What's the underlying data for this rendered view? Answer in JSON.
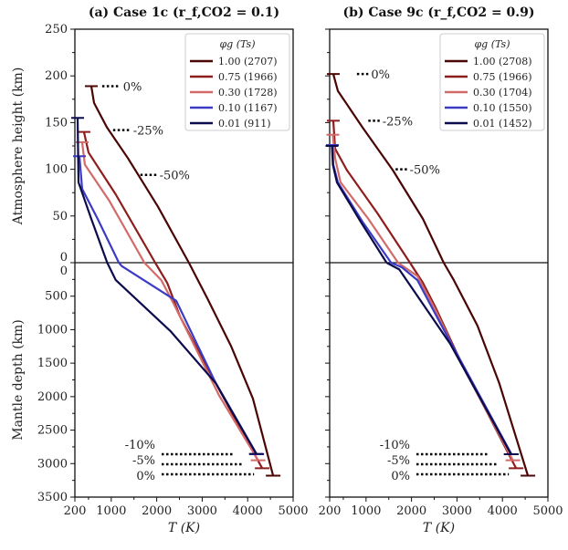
{
  "chart_data": [
    {
      "type": "line",
      "title": "(a) Case 1c (r_f,CO2 = 0.1)",
      "title_main": "(a) Case 1c (r",
      "title_sub": "f,CO",
      "title_sub2": "2",
      "title_tail": " = 0.1)",
      "xlabel": "T (K)",
      "ylabel_top": "Atmosphere height (km)",
      "ylabel_bottom": "Mantle depth (km)",
      "xlim": [
        200,
        5000
      ],
      "xticks": [
        "200",
        "1000",
        "2000",
        "3000",
        "4000",
        "5000"
      ],
      "ylim_top": [
        0,
        250
      ],
      "yticks_top": [
        "0",
        "50",
        "100",
        "150",
        "200",
        "250"
      ],
      "ylim_bottom": [
        3500,
        0
      ],
      "yticks_bottom": [
        "0",
        "500",
        "1000",
        "1500",
        "2000",
        "2500",
        "3000",
        "3500"
      ],
      "legend_title": "φg (Ts)",
      "legend": "top-right",
      "series": [
        {
          "name": "1.00 (2707)",
          "color": "#4a0505",
          "atm": [
            [
              561,
              189
            ],
            [
              622,
              171
            ],
            [
              903,
              145
            ],
            [
              1365,
              112
            ],
            [
              2027,
              60
            ],
            [
              2707,
              0
            ]
          ],
          "mantle": [
            [
              2707,
              0
            ],
            [
              3112,
              531
            ],
            [
              3640,
              1253
            ],
            [
              4116,
              2030
            ],
            [
              4560,
              3180
            ]
          ]
        },
        {
          "name": "0.75 (1966)",
          "color": "#8e1d1d",
          "atm": [
            [
              400,
              140
            ],
            [
              500,
              118
            ],
            [
              1100,
              73
            ],
            [
              1966,
              0
            ]
          ],
          "mantle": [
            [
              1966,
              0
            ],
            [
              2230,
              300
            ],
            [
              2510,
              800
            ],
            [
              3370,
              1890
            ],
            [
              4320,
              3070
            ]
          ]
        },
        {
          "name": "0.30 (1728)",
          "color": "#d36a6a",
          "atm": [
            [
              360,
              129
            ],
            [
              420,
              105
            ],
            [
              960,
              66
            ],
            [
              1728,
              0
            ]
          ],
          "mantle": [
            [
              1728,
              0
            ],
            [
              2100,
              260
            ],
            [
              2370,
              610
            ],
            [
              3370,
              1980
            ],
            [
              4230,
              2950
            ]
          ]
        },
        {
          "name": "0.10 (1167)",
          "color": "#3b3bc4",
          "atm": [
            [
              300,
              114
            ],
            [
              360,
              79
            ],
            [
              700,
              47
            ],
            [
              1167,
              0
            ]
          ],
          "mantle": [
            [
              1167,
              0
            ],
            [
              1230,
              50
            ],
            [
              2430,
              570
            ],
            [
              3300,
              1800
            ],
            [
              4200,
              2860
            ]
          ]
        },
        {
          "name": "0.01 (911)",
          "color": "#0b0b4d",
          "atm": [
            [
              260,
              155
            ],
            [
              280,
              86
            ],
            [
              560,
              47
            ],
            [
              911,
              0
            ]
          ],
          "mantle": [
            [
              911,
              0
            ],
            [
              1100,
              260
            ],
            [
              2300,
              1020
            ],
            [
              3300,
              1800
            ],
            [
              4190,
              2855
            ]
          ]
        }
      ],
      "atm_annotations": [
        {
          "label": "0%",
          "h": 189,
          "t0": 800,
          "t1": 1200
        },
        {
          "label": "-25%",
          "h": 142,
          "t0": 1040,
          "t1": 1420
        },
        {
          "label": "-50%",
          "h": 94,
          "t0": 1640,
          "t1": 2000
        }
      ],
      "mantle_annotations": [
        {
          "label": "-10%",
          "d": 2860,
          "t1": 3680
        },
        {
          "label": "-5%",
          "d": 3010,
          "t1": 3880
        },
        {
          "label": "0%",
          "d": 3160,
          "t1": 4140
        }
      ]
    },
    {
      "type": "line",
      "title": "(b) Case 9c (r_f,CO2 = 0.9)",
      "title_main": "(b) Case 9c (r",
      "title_sub": "f,CO",
      "title_sub2": "2",
      "title_tail": " = 0.9)",
      "xlabel": "T (K)",
      "xlim": [
        200,
        5000
      ],
      "xticks": [
        "200",
        "1000",
        "2000",
        "3000",
        "4000",
        "5000"
      ],
      "ylim_top": [
        0,
        250
      ],
      "ylim_bottom": [
        3500,
        0
      ],
      "legend_title": "φg (Ts)",
      "legend": "top-right",
      "series": [
        {
          "name": "1.00 (2708)",
          "color": "#4a0505",
          "atm": [
            [
              280,
              202
            ],
            [
              380,
              184
            ],
            [
              920,
              145
            ],
            [
              1590,
              99
            ],
            [
              2250,
              47
            ],
            [
              2708,
              0
            ]
          ],
          "mantle": [
            [
              2708,
              0
            ],
            [
              2930,
              260
            ],
            [
              3450,
              940
            ],
            [
              3930,
              1800
            ],
            [
              4560,
              3180
            ]
          ]
        },
        {
          "name": "0.75 (1966)",
          "color": "#8e1d1d",
          "atm": [
            [
              280,
              152
            ],
            [
              320,
              122
            ],
            [
              580,
              99
            ],
            [
              1250,
              53
            ],
            [
              1966,
              0
            ]
          ],
          "mantle": [
            [
              1966,
              0
            ],
            [
              2250,
              300
            ],
            [
              2530,
              670
            ],
            [
              3050,
              1430
            ],
            [
              4300,
              3070
            ]
          ]
        },
        {
          "name": "0.30 (1704)",
          "color": "#d36a6a",
          "atm": [
            [
              270,
              137
            ],
            [
              320,
              112
            ],
            [
              440,
              86
            ],
            [
              1050,
              47
            ],
            [
              1704,
              0
            ]
          ],
          "mantle": [
            [
              1704,
              0
            ],
            [
              2130,
              200
            ],
            [
              2530,
              710
            ],
            [
              3050,
              1450
            ],
            [
              4230,
              2950
            ]
          ]
        },
        {
          "name": "0.10 (1550)",
          "color": "#3b3bc4",
          "atm": [
            [
              260,
              126
            ],
            [
              280,
              105
            ],
            [
              380,
              86
            ],
            [
              920,
              44
            ],
            [
              1550,
              0
            ]
          ],
          "mantle": [
            [
              1550,
              0
            ],
            [
              1790,
              70
            ],
            [
              2130,
              260
            ],
            [
              2590,
              850
            ],
            [
              4200,
              2860
            ]
          ]
        },
        {
          "name": "0.01 (1452)",
          "color": "#0b0b4d",
          "atm": [
            [
              250,
              125
            ],
            [
              270,
              105
            ],
            [
              360,
              86
            ],
            [
              880,
              44
            ],
            [
              1452,
              0
            ]
          ],
          "mantle": [
            [
              1452,
              0
            ],
            [
              1730,
              100
            ],
            [
              2850,
              1210
            ],
            [
              4190,
              2860
            ]
          ]
        }
      ],
      "atm_annotations": [
        {
          "label": "0%",
          "h": 202,
          "t0": 800,
          "t1": 1050
        },
        {
          "label": "-25%",
          "h": 152,
          "t0": 1050,
          "t1": 1300
        },
        {
          "label": "-50%",
          "h": 100,
          "t0": 1650,
          "t1": 1900
        }
      ],
      "mantle_annotations": [
        {
          "label": "-10%",
          "d": 2860,
          "t1": 3680
        },
        {
          "label": "-5%",
          "d": 3010,
          "t1": 3880
        },
        {
          "label": "0%",
          "d": 3160,
          "t1": 4140
        }
      ]
    }
  ]
}
